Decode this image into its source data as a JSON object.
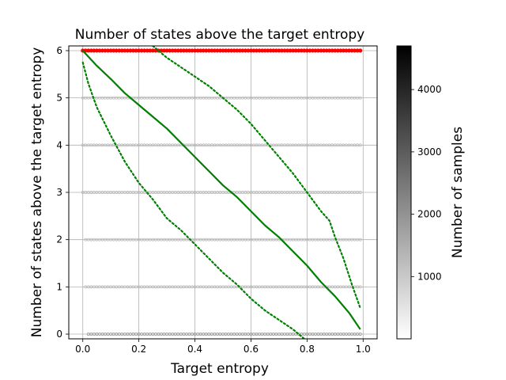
{
  "chart_data": {
    "type": "scatter",
    "title": "Number of states above the target entropy",
    "xlabel": "Target entropy",
    "ylabel": "Number of states above the target entropy",
    "xlim": [
      -0.05,
      1.05
    ],
    "ylim": [
      -0.1,
      6.1
    ],
    "x_ticks": [
      0.0,
      0.2,
      0.4,
      0.6,
      0.8,
      1.0
    ],
    "x_tick_labels": [
      "0.0",
      "0.2",
      "0.4",
      "0.6",
      "0.8",
      "1.0"
    ],
    "y_ticks": [
      0,
      1,
      2,
      3,
      4,
      5,
      6
    ],
    "y_tick_labels": [
      "0",
      "1",
      "2",
      "3",
      "4",
      "5",
      "6"
    ],
    "grid": true,
    "colorbar": {
      "label": "Number of samples",
      "range": [
        1,
        4700
      ],
      "ticks": [
        1000,
        2000,
        3000,
        4000
      ],
      "tick_labels": [
        "1000",
        "2000",
        "3000",
        "4000"
      ],
      "colormap": "Greys"
    },
    "sample_rows": [
      {
        "y": 6,
        "x_start": 0.0,
        "x_end": 0.99,
        "color": "#ff0000"
      },
      {
        "y": 5,
        "x_start": 0.0,
        "x_end": 0.99,
        "color": "#b8b8b8"
      },
      {
        "y": 4,
        "x_start": 0.0,
        "x_end": 0.99,
        "color": "#b8b8b8"
      },
      {
        "y": 3,
        "x_start": 0.0,
        "x_end": 0.99,
        "color": "#b8b8b8"
      },
      {
        "y": 2,
        "x_start": 0.01,
        "x_end": 0.99,
        "color": "#b8b8b8"
      },
      {
        "y": 1,
        "x_start": 0.01,
        "x_end": 0.99,
        "color": "#b8b8b8"
      },
      {
        "y": 0,
        "x_start": 0.02,
        "x_end": 0.99,
        "color": "#909090"
      }
    ],
    "series": [
      {
        "style": "solid",
        "color": "#008000",
        "x": [
          0.0,
          0.05,
          0.1,
          0.15,
          0.2,
          0.25,
          0.3,
          0.35,
          0.4,
          0.45,
          0.5,
          0.55,
          0.6,
          0.65,
          0.7,
          0.75,
          0.8,
          0.85,
          0.9,
          0.95,
          0.99
        ],
        "y": [
          6.0,
          5.68,
          5.4,
          5.1,
          4.85,
          4.6,
          4.35,
          4.05,
          3.75,
          3.45,
          3.15,
          2.9,
          2.6,
          2.3,
          2.05,
          1.75,
          1.45,
          1.1,
          0.8,
          0.45,
          0.1
        ]
      },
      {
        "style": "dotted",
        "color": "#008000",
        "x": [
          0.25,
          0.3,
          0.35,
          0.4,
          0.45,
          0.5,
          0.55,
          0.6,
          0.65,
          0.7,
          0.75,
          0.8,
          0.85,
          0.88,
          0.9,
          0.93,
          0.96,
          0.99
        ],
        "y": [
          6.1,
          5.85,
          5.65,
          5.45,
          5.25,
          5.0,
          4.75,
          4.45,
          4.1,
          3.75,
          3.4,
          3.0,
          2.6,
          2.4,
          2.05,
          1.6,
          1.05,
          0.55
        ]
      },
      {
        "style": "dotted",
        "color": "#008000",
        "x": [
          0.0,
          0.02,
          0.05,
          0.1,
          0.15,
          0.2,
          0.25,
          0.3,
          0.35,
          0.4,
          0.45,
          0.5,
          0.55,
          0.6,
          0.65,
          0.7,
          0.75,
          0.79
        ],
        "y": [
          5.75,
          5.3,
          4.8,
          4.2,
          3.65,
          3.2,
          2.85,
          2.45,
          2.2,
          1.9,
          1.6,
          1.3,
          1.05,
          0.75,
          0.5,
          0.3,
          0.1,
          -0.1
        ]
      }
    ]
  }
}
